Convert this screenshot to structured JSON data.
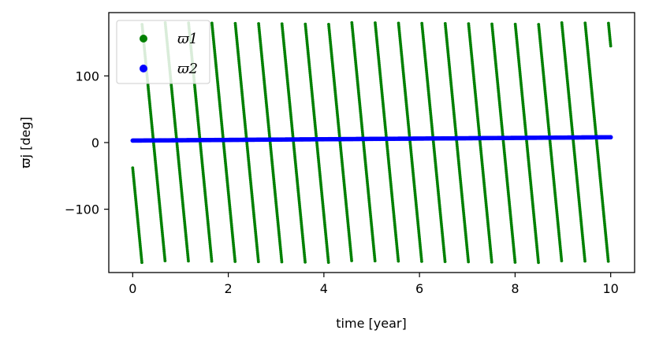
{
  "chart_data": {
    "type": "scatter",
    "xlabel": "time [year]",
    "ylabel": "ϖj [deg]",
    "xlim": [
      -0.5,
      10.5
    ],
    "ylim": [
      -195,
      195
    ],
    "xticks": [
      0,
      2,
      4,
      6,
      8,
      10
    ],
    "xtick_labels": [
      "0",
      "2",
      "4",
      "6",
      "8",
      "10"
    ],
    "yticks": [
      -100,
      0,
      100
    ],
    "ytick_labels": [
      "−100",
      "0",
      "100"
    ],
    "grid": false,
    "legend_position": "upper-left",
    "series": [
      {
        "name": "ϖ1",
        "color": "#008000",
        "pattern": "sawtooth-decreasing",
        "period_years": 0.488,
        "first_crossing_years": 0.28,
        "y_start": -38,
        "range": [
          -180,
          180
        ],
        "x_range": [
          0,
          10
        ]
      },
      {
        "name": "ϖ2",
        "color": "#0000ff",
        "pattern": "linear",
        "points": [
          [
            0,
            3
          ],
          [
            10,
            8
          ]
        ]
      }
    ]
  }
}
